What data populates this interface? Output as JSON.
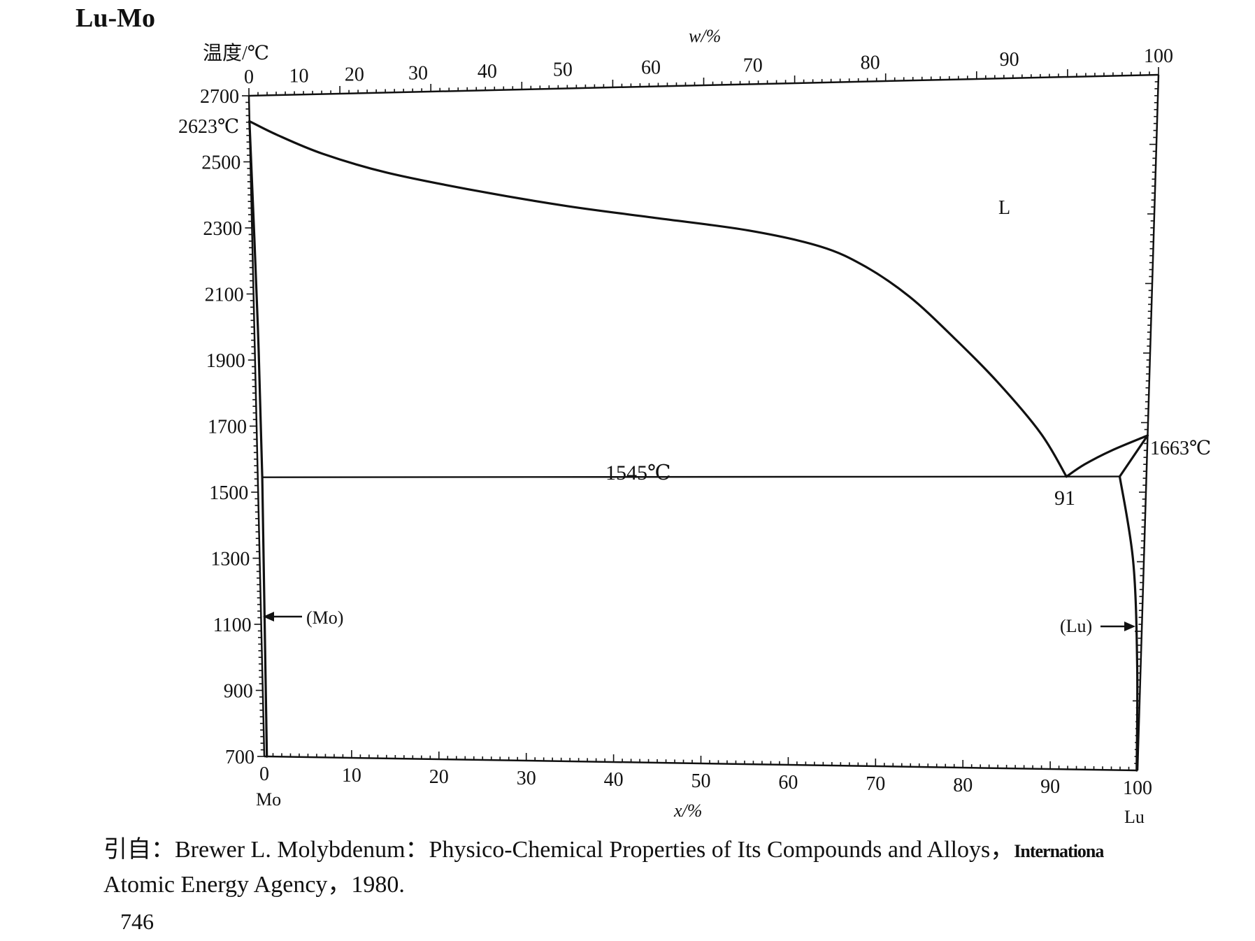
{
  "chart_data": {
    "type": "line",
    "title": "Lu-Mo",
    "ylabel": "温度/℃",
    "xlabel": "x/%",
    "top_axis_label": "w/%",
    "ylim": [
      700,
      2700
    ],
    "xlim": [
      0,
      100
    ],
    "y_ticks": [
      "700",
      "900",
      "1100",
      "1300",
      "1500",
      "1700",
      "1900",
      "2100",
      "2300",
      "2500",
      "2700"
    ],
    "x_ticks": [
      "0",
      "10",
      "20",
      "30",
      "40",
      "50",
      "60",
      "70",
      "80",
      "90",
      "100"
    ],
    "top_ticks": [
      "0",
      "10",
      "20",
      "30",
      "40",
      "50",
      "60",
      "70",
      "80",
      "90",
      "100"
    ],
    "x_left_element": "Mo",
    "x_right_element": "Lu",
    "series": [
      {
        "name": "liquidus",
        "x": [
          0,
          3,
          8,
          15,
          25,
          35,
          45,
          55,
          63,
          68,
          73,
          78,
          83,
          88,
          91
        ],
        "y": [
          2623,
          2580,
          2520,
          2460,
          2400,
          2350,
          2310,
          2270,
          2220,
          2160,
          2070,
          1950,
          1820,
          1670,
          1545
        ]
      },
      {
        "name": "liquidus-lu",
        "x": [
          91,
          93,
          96,
          100
        ],
        "y": [
          1545,
          1580,
          1620,
          1663
        ]
      },
      {
        "name": "eutectic-line",
        "x": [
          0.5,
          97
        ],
        "y": [
          1545,
          1545
        ]
      },
      {
        "name": "solidus-mo",
        "x": [
          0,
          0.4,
          0.5
        ],
        "y": [
          2623,
          2000,
          1545
        ]
      },
      {
        "name": "solvus-mo",
        "x": [
          0.5,
          0.3
        ],
        "y": [
          1545,
          700
        ]
      },
      {
        "name": "solidus-lu",
        "x": [
          97,
          100
        ],
        "y": [
          1545,
          1663
        ]
      },
      {
        "name": "solvus-lu",
        "x": [
          97,
          98.8,
          99.6,
          99.9
        ],
        "y": [
          1545,
          1300,
          1000,
          700
        ]
      }
    ],
    "annotations": {
      "mo_melting": "2623℃",
      "lu_melting": "1663℃",
      "eutectic_temp": "1545℃",
      "eutectic_comp": "91",
      "liquid": "L",
      "mo_phase": "(Mo)",
      "lu_phase": "(Lu)"
    }
  },
  "citation": {
    "line1_prefix": "引自：Brewer L.  Molybdenum：Physico-Chemical Properties of Its Compounds and Alloys，",
    "line1_suffix": "Internationa",
    "line2": "Atomic Energy Agency，1980."
  },
  "page_number": "746"
}
